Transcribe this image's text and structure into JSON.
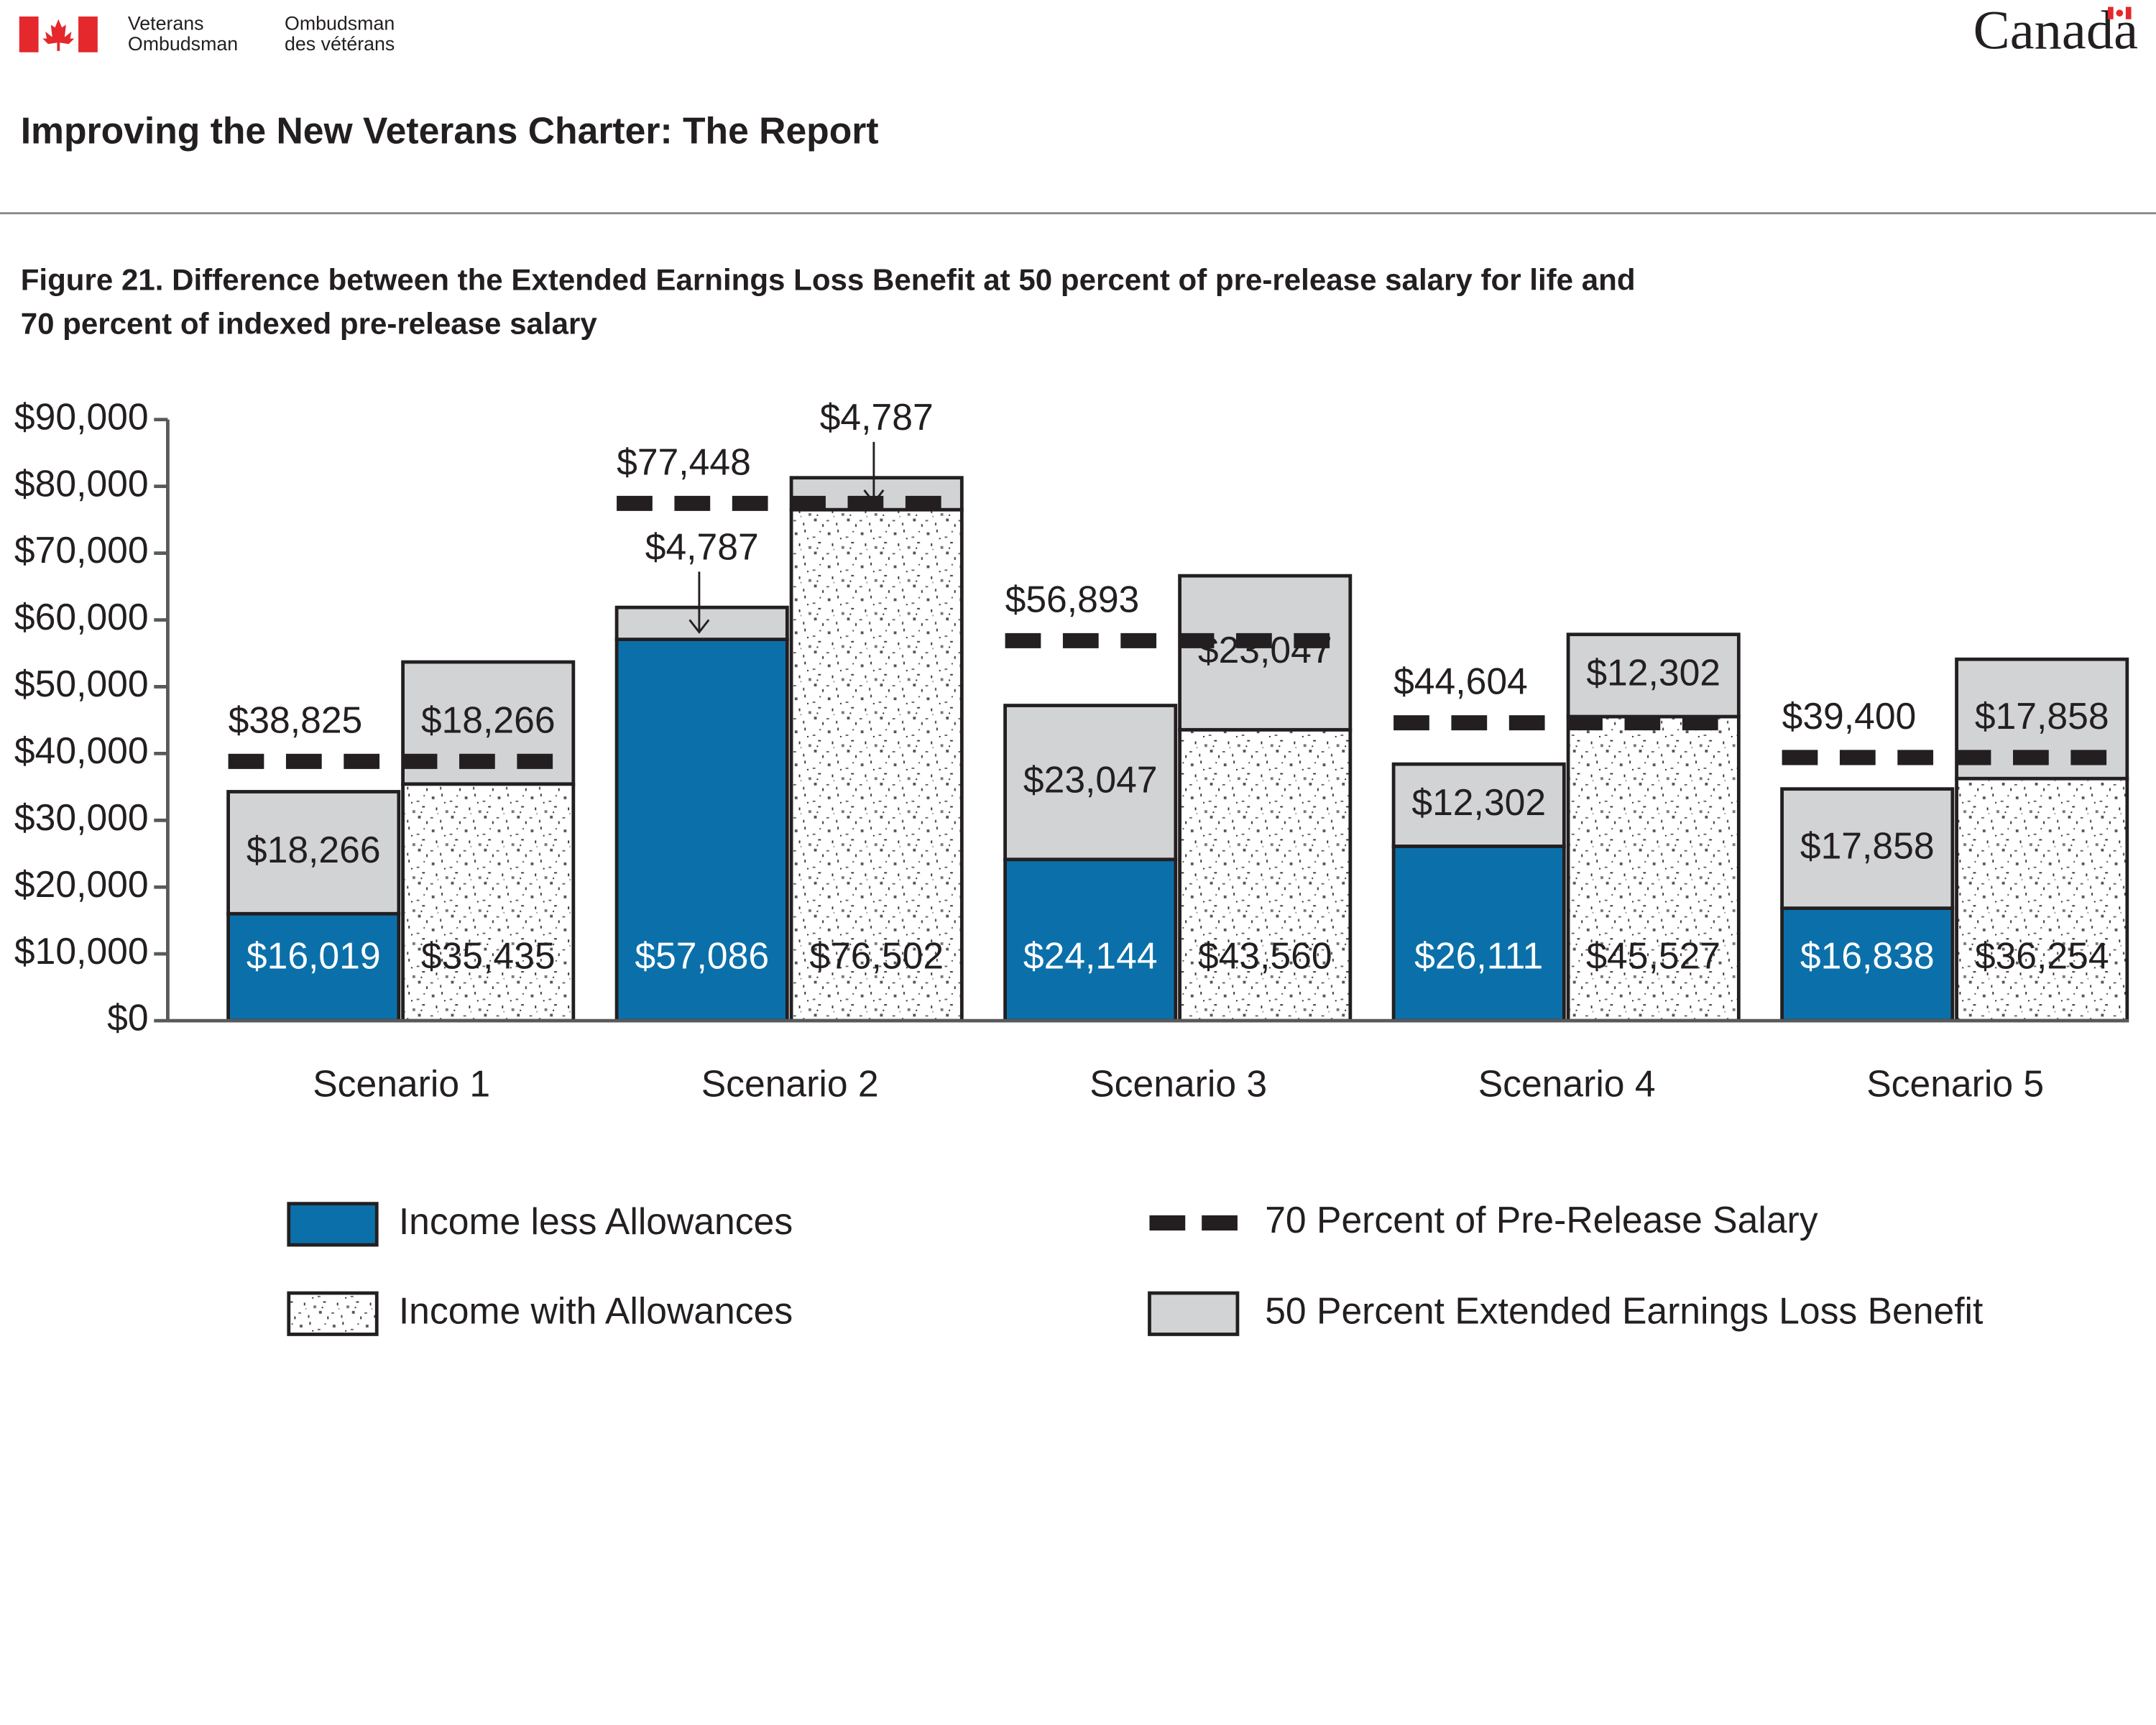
{
  "header": {
    "org_en": [
      "Veterans",
      "Ombudsman"
    ],
    "org_fr": [
      "Ombudsman",
      "des vétérans"
    ],
    "wordmark": "Canada",
    "report_title": "Improving the New Veterans Charter: The Report"
  },
  "chart_data": {
    "type": "grouped_stacked_bar",
    "title": [
      "Figure 21. Difference between the Extended Earnings Loss Benefit at 50 percent of pre-release salary for life and",
      "70 percent of indexed pre-release salary"
    ],
    "categories": [
      "Scenario 1",
      "Scenario 2",
      "Scenario 3",
      "Scenario 4",
      "Scenario 5"
    ],
    "ylim": [
      0,
      90000
    ],
    "yticks": [
      {
        "value": 0,
        "label": "$0"
      },
      {
        "value": 10000,
        "label": "$10,000"
      },
      {
        "value": 20000,
        "label": "$20,000"
      },
      {
        "value": 30000,
        "label": "$30,000"
      },
      {
        "value": 40000,
        "label": "$40,000"
      },
      {
        "value": 50000,
        "label": "$50,000"
      },
      {
        "value": 60000,
        "label": "$60,000"
      },
      {
        "value": 70000,
        "label": "$70,000"
      },
      {
        "value": 80000,
        "label": "$80,000"
      },
      {
        "value": 90000,
        "label": "$90,000"
      }
    ],
    "series": [
      {
        "name": "Income less Allowances",
        "color": "#0b70aa",
        "stack": "left",
        "values": [
          16019,
          57086,
          24144,
          26111,
          16838
        ],
        "value_labels": [
          "$16,019",
          "$57,086",
          "$24,144",
          "$26,111",
          "$16,838"
        ]
      },
      {
        "name": "Income with Allowances",
        "color": "#ffffff",
        "pattern": true,
        "stack": "right",
        "values": [
          35435,
          76502,
          43560,
          45527,
          36254
        ],
        "value_labels": [
          "$35,435",
          "$76,502",
          "$43,560",
          "$45,527",
          "$36,254"
        ]
      },
      {
        "name": "70 Percent of Pre-Release Salary",
        "color": "#231f20",
        "type": "dashed_line",
        "values": [
          38825,
          77448,
          56893,
          44604,
          39400
        ],
        "value_labels": [
          "$38,825",
          "$77,448",
          "$56,893",
          "$44,604",
          "$39,400"
        ]
      },
      {
        "name": "50 Percent Extended Earnings Loss Benefit",
        "color": "#d1d3d4",
        "stack": "both",
        "values": [
          18266,
          4787,
          23047,
          12302,
          17858
        ],
        "value_labels": [
          "$18,266",
          "$4,787",
          "$23,047",
          "$12,302",
          "$17,858"
        ]
      }
    ]
  }
}
